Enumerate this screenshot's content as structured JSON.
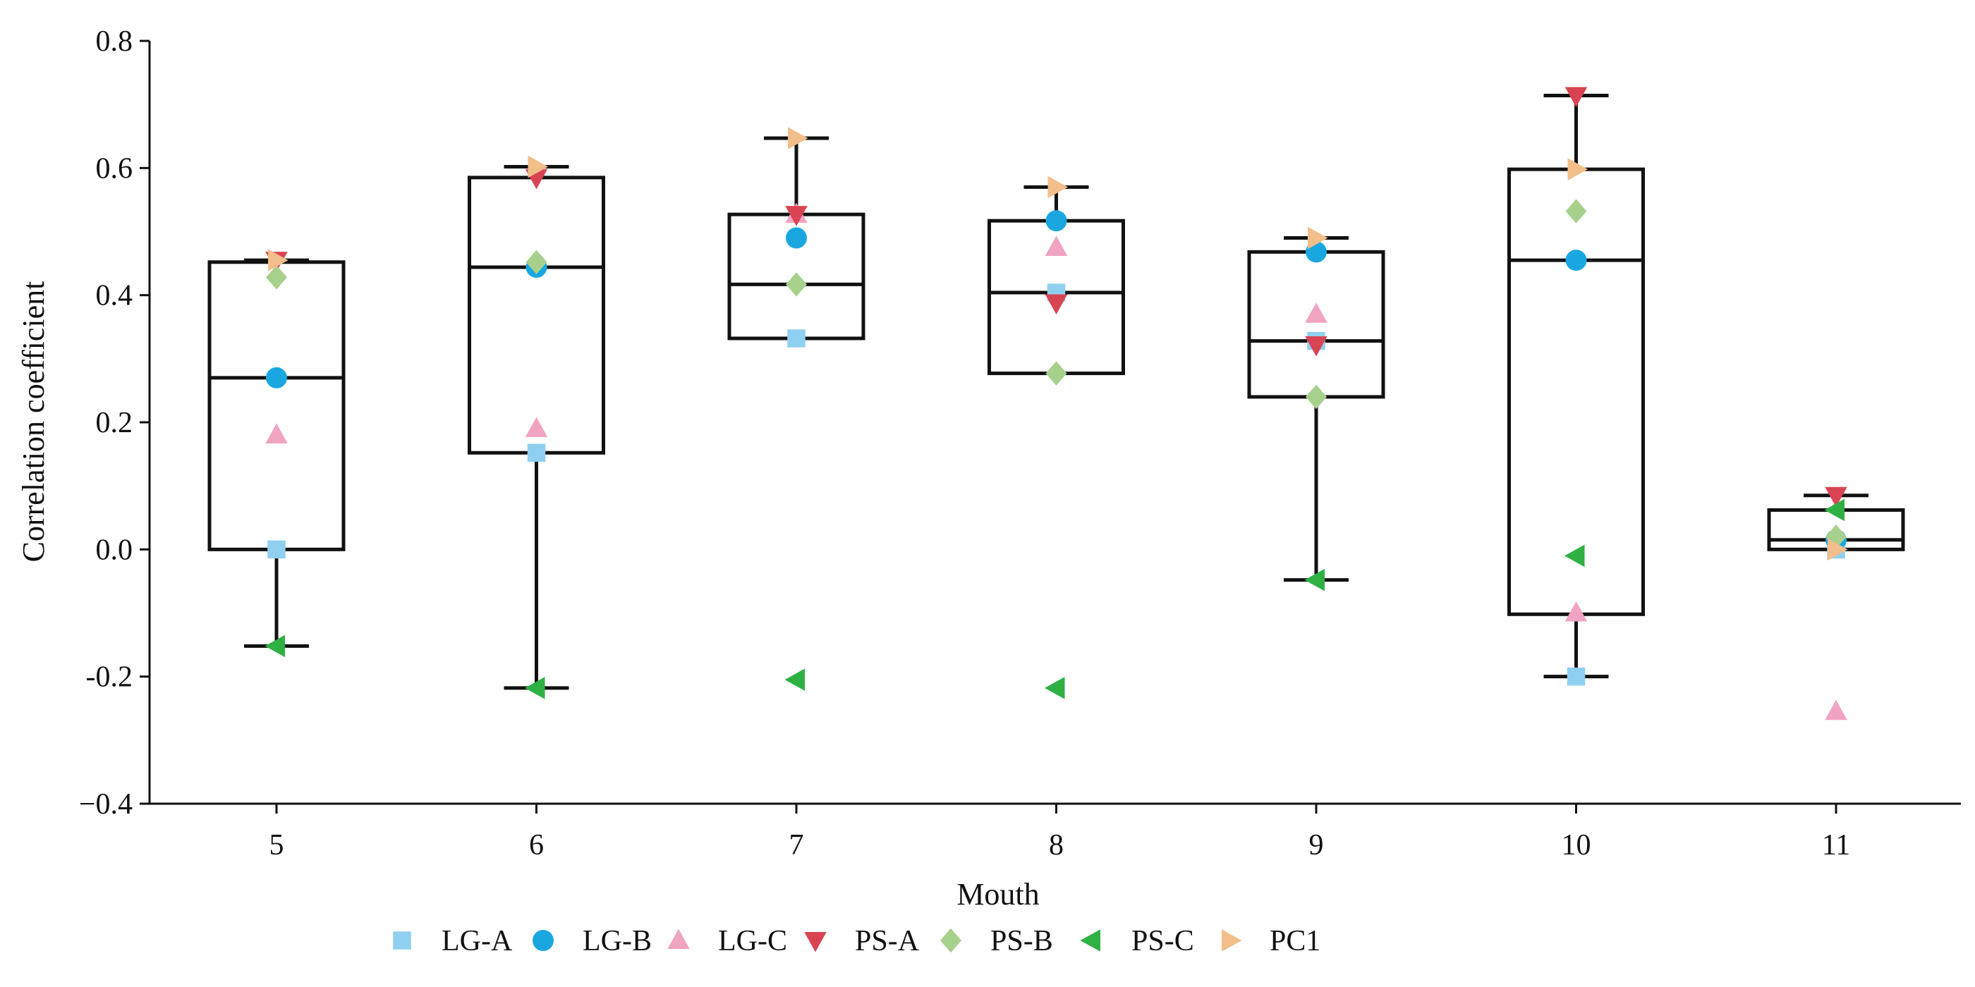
{
  "chart_data": {
    "type": "box",
    "xlabel": "Mouth",
    "ylabel": "Correlation coefficient",
    "categories": [
      "5",
      "6",
      "7",
      "8",
      "9",
      "10",
      "11"
    ],
    "ylim": [
      -0.4,
      0.8
    ],
    "yticks": [
      -0.4,
      -0.2,
      0.0,
      0.2,
      0.4,
      0.6,
      0.8
    ],
    "ytick_labels": [
      "−0.4",
      "-0.2",
      "0.0",
      "0.2",
      "0.4",
      "0.6",
      "0.8"
    ],
    "grid": false,
    "legend_position": "bottom",
    "boxes": [
      {
        "category": "5",
        "q1": 0.0,
        "median": 0.27,
        "q3": 0.452,
        "whisker_low": -0.152,
        "whisker_high": 0.455
      },
      {
        "category": "6",
        "q1": 0.152,
        "median": 0.444,
        "q3": 0.585,
        "whisker_low": -0.218,
        "whisker_high": 0.602
      },
      {
        "category": "7",
        "q1": 0.332,
        "median": 0.417,
        "q3": 0.527,
        "whisker_low": 0.332,
        "whisker_high": 0.647
      },
      {
        "category": "8",
        "q1": 0.277,
        "median": 0.404,
        "q3": 0.517,
        "whisker_low": 0.277,
        "whisker_high": 0.57
      },
      {
        "category": "9",
        "q1": 0.24,
        "median": 0.328,
        "q3": 0.468,
        "whisker_low": -0.048,
        "whisker_high": 0.49
      },
      {
        "category": "10",
        "q1": -0.102,
        "median": 0.455,
        "q3": 0.598,
        "whisker_low": -0.2,
        "whisker_high": 0.714
      },
      {
        "category": "11",
        "q1": 0.0,
        "median": 0.015,
        "q3": 0.062,
        "whisker_low": 0.0,
        "whisker_high": 0.085
      }
    ],
    "series": [
      {
        "name": "LG-A",
        "marker": "square",
        "color": "#8fd0f0",
        "values": [
          0.0,
          0.152,
          0.332,
          0.404,
          0.328,
          -0.2,
          0.0
        ]
      },
      {
        "name": "LG-B",
        "marker": "circle",
        "color": "#1aa7e0",
        "values": [
          0.27,
          0.444,
          0.49,
          0.517,
          0.468,
          0.455,
          0.015
        ]
      },
      {
        "name": "LG-C",
        "marker": "triangle-up",
        "color": "#f1a3c2",
        "values": [
          0.18,
          0.19,
          0.527,
          0.475,
          0.37,
          -0.1,
          -0.255
        ]
      },
      {
        "name": "PS-A",
        "marker": "triangle-down",
        "color": "#d94452",
        "values": [
          0.455,
          0.585,
          0.527,
          0.388,
          0.322,
          0.714,
          0.085
        ]
      },
      {
        "name": "PS-B",
        "marker": "diamond",
        "color": "#a8d08d",
        "values": [
          0.428,
          0.452,
          0.417,
          0.277,
          0.24,
          0.532,
          0.02
        ]
      },
      {
        "name": "PS-C",
        "marker": "triangle-left",
        "color": "#2fb043",
        "values": [
          -0.152,
          -0.218,
          -0.205,
          -0.218,
          -0.048,
          -0.01,
          0.062
        ]
      },
      {
        "name": "PC1",
        "marker": "triangle-right",
        "color": "#f2be8a",
        "values": [
          0.455,
          0.602,
          0.647,
          0.57,
          0.49,
          0.598,
          0.0
        ]
      }
    ]
  }
}
